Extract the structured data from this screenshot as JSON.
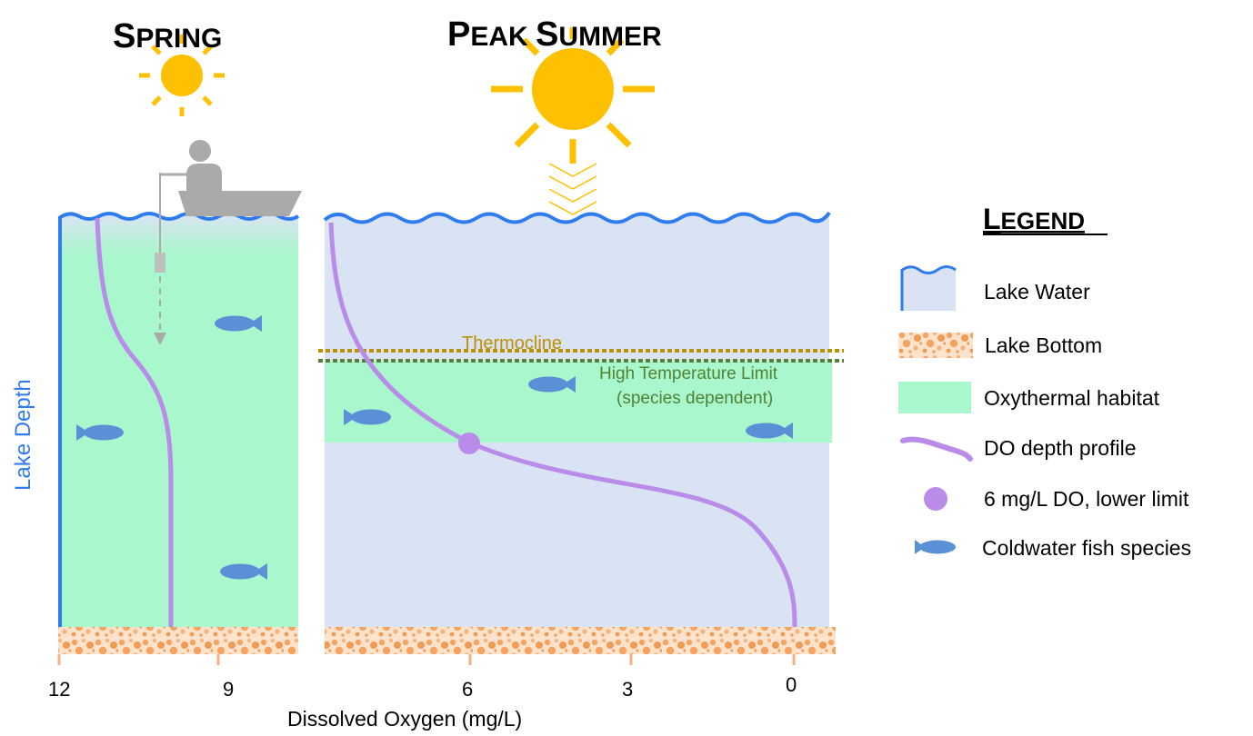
{
  "titles": {
    "spring": {
      "first": "S",
      "rest": "PRING"
    },
    "summer": {
      "first1": "P",
      "rest1": "EAK",
      "first2": "S",
      "rest2": "UMMER"
    }
  },
  "labels": {
    "thermocline": "Thermocline",
    "high_temp_line1": "High  Temperature Limit",
    "high_temp_line2": "(species dependent)",
    "y_axis": "Lake Depth",
    "x_axis": "Dissolved Oxygen (mg/L)"
  },
  "x_ticks": [
    "12",
    "9",
    "6",
    "3",
    "0"
  ],
  "legend": {
    "title": {
      "first": "L",
      "rest": "EGEND"
    },
    "items": [
      {
        "label": "Lake Water",
        "icon": "wave-icon"
      },
      {
        "label": "Lake Bottom",
        "icon": "gravel-icon"
      },
      {
        "label": "Oxythermal habitat",
        "icon": "habitat-swatch"
      },
      {
        "label": "DO depth profile",
        "icon": "curve-icon"
      },
      {
        "label": "6 mg/L DO, lower limit",
        "icon": "dot-icon"
      },
      {
        "label": "Coldwater fish species",
        "icon": "fish-icon"
      }
    ]
  },
  "colors": {
    "water_line": "#2f7cf0",
    "water_fill": "#dae3f3",
    "habitat": "#a9f7cc",
    "profile": "#b88ce8",
    "fish": "#5b8fd6",
    "sun": "#ffc000",
    "thermocline": "#bf9000",
    "high_temp": "#548235",
    "gravel_base": "#fde2cc",
    "gravel_dot": "#f4a460",
    "boat": "#aaaaaa",
    "tick": "#f4b183"
  }
}
